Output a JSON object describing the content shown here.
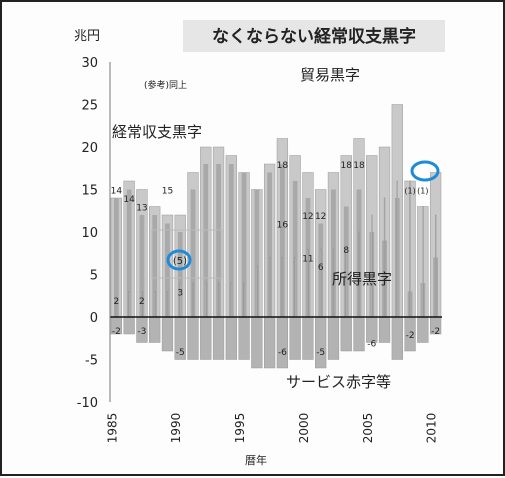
{
  "chart_data": {
    "type": "bar",
    "title": "なくならない経常収支黒字",
    "unit": "兆円",
    "xlabel": "暦年",
    "note": "(参考)同上",
    "ylim": [
      -10,
      30
    ],
    "yticks": [
      30,
      25,
      20,
      15,
      10,
      5,
      0,
      -5,
      -10
    ],
    "xticks": [
      1985,
      1990,
      1995,
      2000,
      2005,
      2010
    ],
    "x": [
      1985,
      1986,
      1987,
      1988,
      1989,
      1990,
      1991,
      1992,
      1993,
      1994,
      1995,
      1996,
      1997,
      1998,
      1999,
      2000,
      2001,
      2002,
      2003,
      2004,
      2005,
      2006,
      2007,
      2008,
      2009,
      2010
    ],
    "series": [
      {
        "name": "経常収支黒字",
        "values": [
          14,
          16,
          15,
          13,
          12,
          12,
          17,
          20,
          20,
          19,
          17,
          15,
          18,
          21,
          19,
          17,
          15,
          17,
          19,
          21,
          19,
          20,
          25,
          16,
          13,
          17
        ]
      },
      {
        "name": "貿易黒字",
        "values": [
          14,
          15,
          12,
          12,
          11,
          10,
          15,
          18,
          18,
          18,
          17,
          15,
          17,
          18,
          16,
          14,
          11,
          15,
          13,
          15,
          10,
          9,
          14,
          3,
          4,
          7
        ]
      },
      {
        "name": "所得黒字",
        "values": [
          2,
          3,
          3,
          3,
          3,
          4,
          4,
          4,
          4,
          4,
          4,
          6,
          7,
          7,
          7,
          8,
          8,
          8,
          8,
          10,
          12,
          14,
          16,
          16,
          13,
          12
        ]
      },
      {
        "name": "サービス赤字等",
        "values": [
          -2,
          -2,
          -3,
          -3,
          -4,
          -5,
          -5,
          -5,
          -5,
          -5,
          -5,
          -6,
          -6,
          -6,
          -5,
          -5,
          -6,
          -5,
          -4,
          -4,
          -3,
          -3,
          -5,
          -4,
          -3,
          -2
        ]
      }
    ],
    "annotations": {
      "trade_label": "貿易黒字",
      "current_label": "経常収支黒字",
      "income_label": "所得黒字",
      "service_label": "サービス赤字等",
      "box_value": "(5)",
      "box_values": [
        "(1)",
        "(1)"
      ],
      "bar_values": [
        "14",
        "14",
        "13",
        "15",
        "18",
        "16",
        "18",
        "18",
        "12",
        "11",
        "12",
        "6",
        "8",
        "2",
        "2",
        "3",
        "-2",
        "-2",
        "-3",
        "-5",
        "-5",
        "-6",
        "-6",
        "-2"
      ]
    },
    "highlight_color": "#1f8ad8",
    "grid": false
  }
}
